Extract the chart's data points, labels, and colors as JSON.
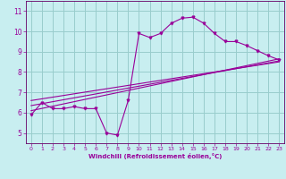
{
  "xlabel": "Windchill (Refroidissement éolien,°C)",
  "bg_color": "#c8eef0",
  "grid_color": "#99cccc",
  "line_color": "#990099",
  "spine_color": "#660066",
  "xlim": [
    -0.5,
    23.5
  ],
  "ylim": [
    4.5,
    11.5
  ],
  "xticks": [
    0,
    1,
    2,
    3,
    4,
    5,
    6,
    7,
    8,
    9,
    10,
    11,
    12,
    13,
    14,
    15,
    16,
    17,
    18,
    19,
    20,
    21,
    22,
    23
  ],
  "yticks": [
    5,
    6,
    7,
    8,
    9,
    10,
    11
  ],
  "main_x": [
    0,
    1,
    2,
    3,
    4,
    5,
    6,
    7,
    8,
    9,
    10,
    11,
    12,
    13,
    14,
    15,
    16,
    17,
    18,
    19,
    20,
    21,
    22,
    23
  ],
  "main_y": [
    5.9,
    6.5,
    6.2,
    6.2,
    6.3,
    6.2,
    6.2,
    5.0,
    4.9,
    6.6,
    9.9,
    9.7,
    9.9,
    10.4,
    10.65,
    10.7,
    10.4,
    9.9,
    9.5,
    9.5,
    9.3,
    9.05,
    8.8,
    8.6
  ],
  "line1_x": [
    0,
    23
  ],
  "line1_y": [
    6.1,
    8.65
  ],
  "line2_x": [
    0,
    23
  ],
  "line2_y": [
    6.35,
    8.55
  ],
  "line3_x": [
    0,
    23
  ],
  "line3_y": [
    6.6,
    8.5
  ]
}
